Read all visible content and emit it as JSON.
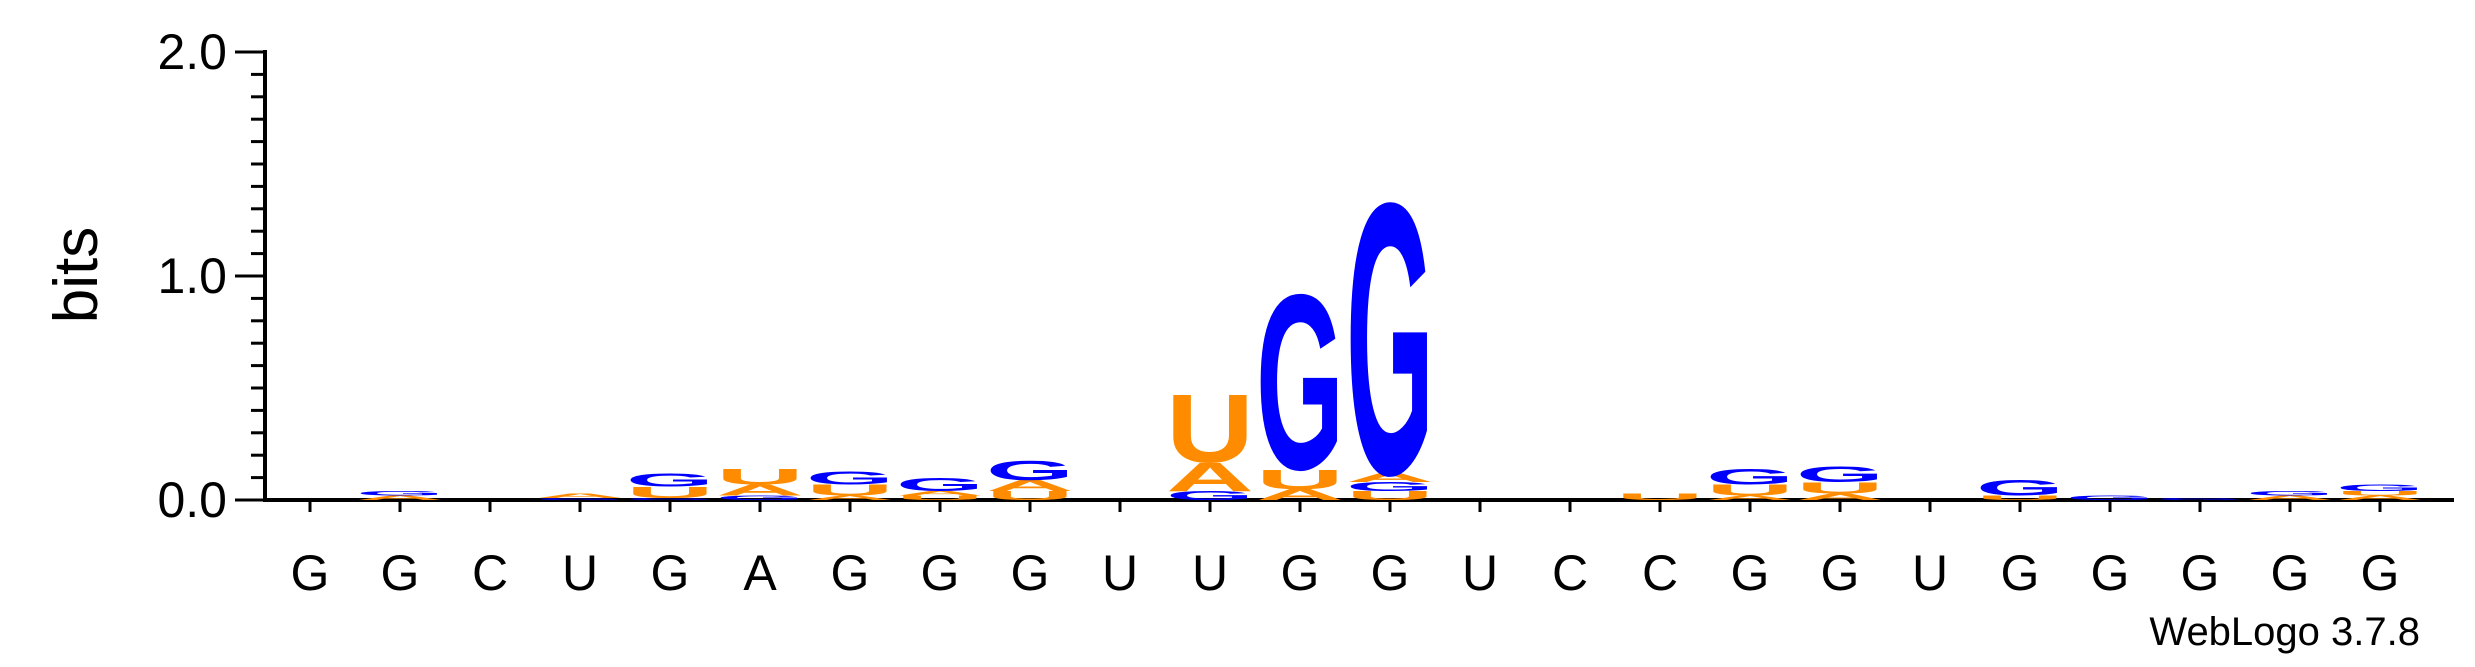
{
  "chart_data": {
    "type": "sequence-logo",
    "ylabel": "bits",
    "ylim": [
      0,
      2.0
    ],
    "yticks": [
      {
        "value": 0.0,
        "label": "0.0"
      },
      {
        "value": 1.0,
        "label": "1.0"
      },
      {
        "value": 2.0,
        "label": "2.0"
      }
    ],
    "positions": [
      "G",
      "G",
      "C",
      "U",
      "G",
      "A",
      "G",
      "G",
      "G",
      "U",
      "U",
      "G",
      "G",
      "U",
      "C",
      "C",
      "G",
      "G",
      "U",
      "G",
      "G",
      "G",
      "G",
      "G"
    ],
    "colors": {
      "G": "#0000ff",
      "A": "#ff8c00",
      "U": "#ff8c00",
      "C": "#0000ff"
    },
    "stacks": [
      [],
      [
        {
          "letter": "A",
          "bits": 0.02
        },
        {
          "letter": "G",
          "bits": 0.02
        }
      ],
      [],
      [
        {
          "letter": "G",
          "bits": 0.01
        },
        {
          "letter": "A",
          "bits": 0.02
        }
      ],
      [
        {
          "letter": "G",
          "bits": 0.01
        },
        {
          "letter": "U",
          "bits": 0.05
        },
        {
          "letter": "G",
          "bits": 0.06
        }
      ],
      [
        {
          "letter": "G",
          "bits": 0.02
        },
        {
          "letter": "A",
          "bits": 0.05
        },
        {
          "letter": "U",
          "bits": 0.07
        }
      ],
      [
        {
          "letter": "A",
          "bits": 0.02
        },
        {
          "letter": "U",
          "bits": 0.05
        },
        {
          "letter": "G",
          "bits": 0.06
        }
      ],
      [
        {
          "letter": "U",
          "bits": 0.02
        },
        {
          "letter": "A",
          "bits": 0.02
        },
        {
          "letter": "G",
          "bits": 0.06
        }
      ],
      [
        {
          "letter": "U",
          "bits": 0.04
        },
        {
          "letter": "A",
          "bits": 0.05
        },
        {
          "letter": "G",
          "bits": 0.09
        }
      ],
      [],
      [
        {
          "letter": "G",
          "bits": 0.04
        },
        {
          "letter": "A",
          "bits": 0.13
        },
        {
          "letter": "U",
          "bits": 0.31
        }
      ],
      [
        {
          "letter": "A",
          "bits": 0.05
        },
        {
          "letter": "U",
          "bits": 0.09
        },
        {
          "letter": "G",
          "bits": 0.8
        }
      ],
      [
        {
          "letter": "U",
          "bits": 0.04
        },
        {
          "letter": "G",
          "bits": 0.04
        },
        {
          "letter": "A",
          "bits": 0.04
        },
        {
          "letter": "G",
          "bits": 1.24
        }
      ],
      [],
      [],
      [
        {
          "letter": "U",
          "bits": 0.03
        }
      ],
      [
        {
          "letter": "A",
          "bits": 0.02
        },
        {
          "letter": "U",
          "bits": 0.05
        },
        {
          "letter": "G",
          "bits": 0.07
        }
      ],
      [
        {
          "letter": "A",
          "bits": 0.03
        },
        {
          "letter": "U",
          "bits": 0.05
        },
        {
          "letter": "G",
          "bits": 0.07
        }
      ],
      [],
      [
        {
          "letter": "U",
          "bits": 0.02
        },
        {
          "letter": "G",
          "bits": 0.07
        }
      ],
      [
        {
          "letter": "G",
          "bits": 0.02
        }
      ],
      [
        {
          "letter": "G",
          "bits": 0.01
        }
      ],
      [
        {
          "letter": "A",
          "bits": 0.02
        },
        {
          "letter": "G",
          "bits": 0.02
        }
      ],
      [
        {
          "letter": "A",
          "bits": 0.02
        },
        {
          "letter": "U",
          "bits": 0.02
        },
        {
          "letter": "G",
          "bits": 0.03
        }
      ]
    ]
  },
  "credit": "WebLogo 3.7.8"
}
